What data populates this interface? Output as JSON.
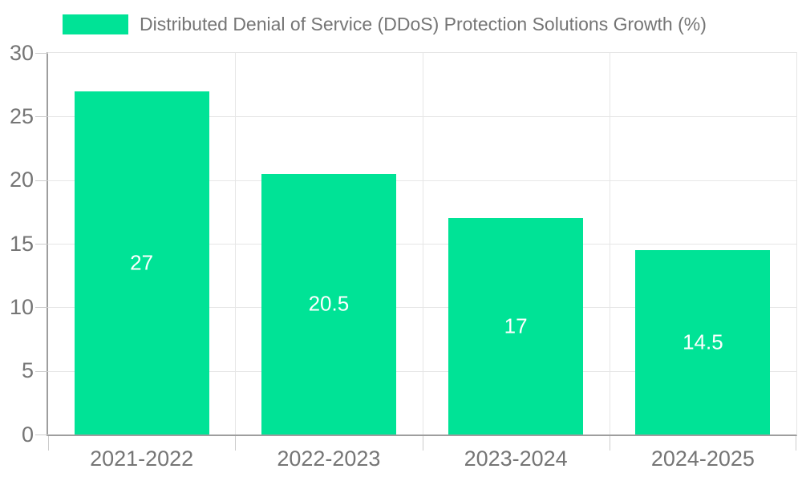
{
  "legend": {
    "position": "top",
    "items": [
      {
        "label": "Distributed Denial of Service (DDoS) Protection Solutions Growth (%)",
        "swatch_color": "#00E396"
      }
    ]
  },
  "colors": {
    "bar": "#00E396",
    "axis_text": "#757575",
    "legend_text": "#757575",
    "grid_line": "#e6e6e6",
    "axis_line": "#9e9e9e",
    "tick_mark": "#cccccc",
    "value_label": "#ffffff",
    "background": "#ffffff"
  },
  "chart_data": {
    "type": "bar",
    "title": "",
    "xlabel": "",
    "ylabel": "",
    "categories": [
      "2021-2022",
      "2022-2023",
      "2023-2024",
      "2024-2025"
    ],
    "values": [
      27,
      20.5,
      17,
      14.5
    ],
    "value_labels": [
      "27",
      "20.5",
      "17",
      "14.5"
    ],
    "series": [
      {
        "name": "Distributed Denial of Service (DDoS) Protection Solutions Growth (%)",
        "values": [
          27,
          20.5,
          17,
          14.5
        ]
      }
    ],
    "ylim": [
      0,
      30
    ],
    "y_ticks": [
      0,
      5,
      10,
      15,
      20,
      25,
      30
    ],
    "grid": true,
    "legend_position": "top",
    "bar_width_ratio": 0.72,
    "value_label_position": "center"
  }
}
